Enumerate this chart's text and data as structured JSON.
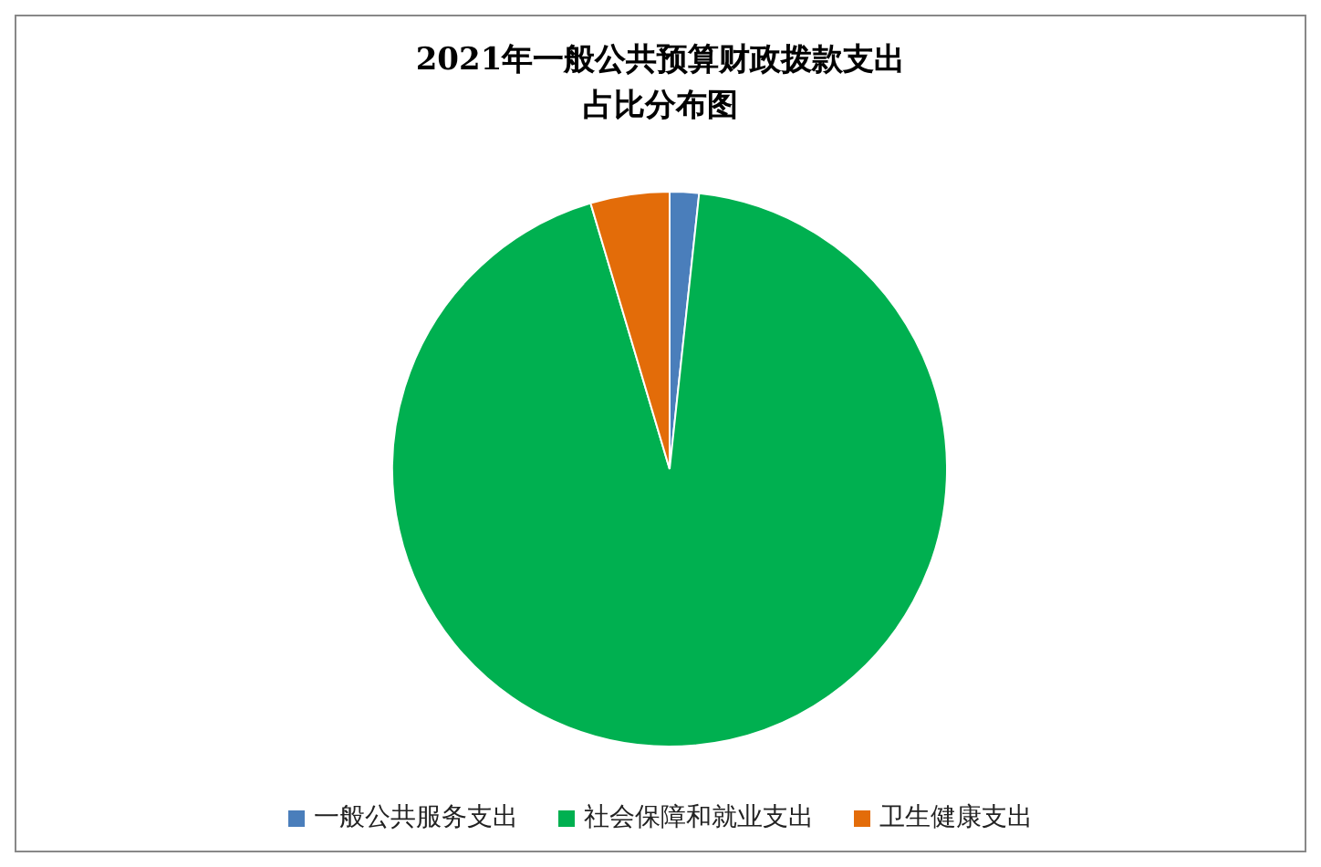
{
  "chart_data": {
    "type": "pie",
    "title": "2021年一般公共预算财政拨款支出占比分布图",
    "categories": [
      "一般公共服务支出",
      "社会保障和就业支出",
      "卫生健康支出"
    ],
    "values": [
      1.7,
      93.7,
      4.6
    ],
    "colors": [
      "#4a7ebb",
      "#00b050",
      "#e36c09"
    ],
    "legend": "bottom"
  }
}
